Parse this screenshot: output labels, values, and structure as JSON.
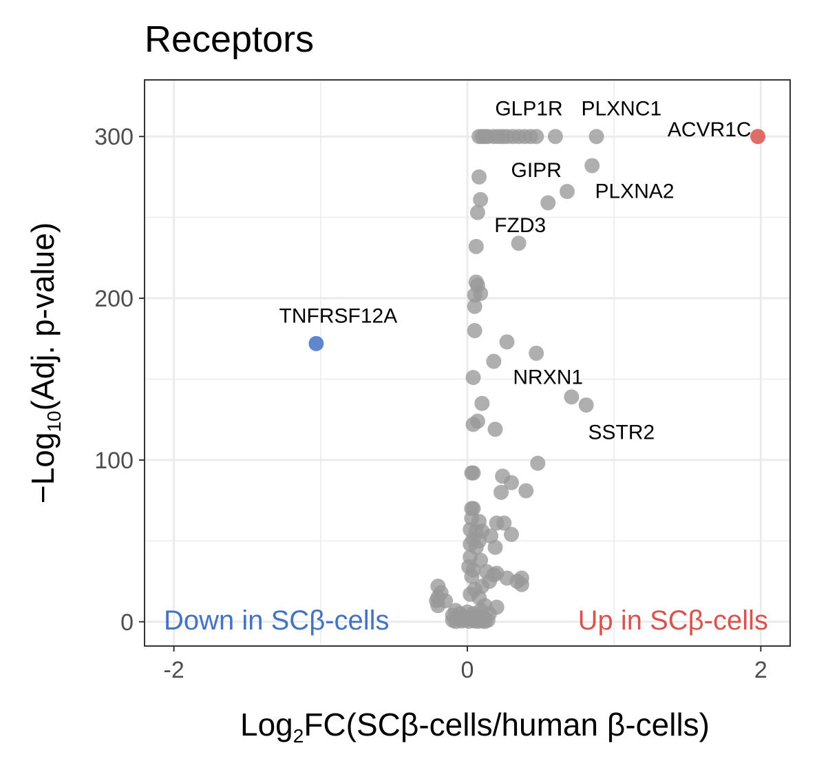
{
  "chart_data": {
    "type": "scatter",
    "title": "Receptors",
    "xlabel": {
      "prefix": "Log",
      "sub": "2",
      "suffix": "FC(SCβ-cells/human β-cells)"
    },
    "ylabel": {
      "prefix": "−Log",
      "sub": "10",
      "suffix": "(Adj. p-value)"
    },
    "xlim": [
      -2.2,
      2.2
    ],
    "ylim": [
      -15,
      335
    ],
    "x_ticks": [
      -2,
      0,
      2
    ],
    "x_tick_labels": [
      "-2",
      "0",
      "2"
    ],
    "y_ticks": [
      0,
      100,
      200,
      300
    ],
    "y_tick_labels": [
      "0",
      "100",
      "200",
      "300"
    ],
    "grid": true,
    "colors": {
      "up": "#d9534f",
      "down": "#4472c4",
      "neutral": "#999999",
      "grid": "#ebebeb",
      "border": "#333333"
    },
    "corner_labels": {
      "down": "Down in SCβ-cells",
      "up": "Up in SCβ-cells"
    },
    "highlighted": [
      {
        "gene": "ACVR1C",
        "x": 1.98,
        "y": 300,
        "class": "up"
      },
      {
        "gene": "TNFRSF12A",
        "x": -1.03,
        "y": 172,
        "class": "down"
      }
    ],
    "gene_labels": [
      {
        "gene": "GLP1R",
        "x": 0.42,
        "y": 313
      },
      {
        "gene": "PLXNC1",
        "x": 1.05,
        "y": 313
      },
      {
        "gene": "ACVR1C",
        "x": 1.65,
        "y": 300
      },
      {
        "gene": "GIPR",
        "x": 0.47,
        "y": 275
      },
      {
        "gene": "PLXNA2",
        "x": 1.14,
        "y": 262
      },
      {
        "gene": "FZD3",
        "x": 0.36,
        "y": 241
      },
      {
        "gene": "TNFRSF12A",
        "x": -0.88,
        "y": 185
      },
      {
        "gene": "NRXN1",
        "x": 0.55,
        "y": 147
      },
      {
        "gene": "SSTR2",
        "x": 1.05,
        "y": 113
      }
    ],
    "points": [
      {
        "x": 0.08,
        "y": 300
      },
      {
        "x": 0.1,
        "y": 300
      },
      {
        "x": 0.12,
        "y": 300
      },
      {
        "x": 0.14,
        "y": 300
      },
      {
        "x": 0.18,
        "y": 300
      },
      {
        "x": 0.21,
        "y": 300
      },
      {
        "x": 0.24,
        "y": 300
      },
      {
        "x": 0.27,
        "y": 300
      },
      {
        "x": 0.31,
        "y": 300
      },
      {
        "x": 0.35,
        "y": 300
      },
      {
        "x": 0.39,
        "y": 300
      },
      {
        "x": 0.43,
        "y": 300
      },
      {
        "x": 0.47,
        "y": 300
      },
      {
        "x": 0.6,
        "y": 300
      },
      {
        "x": 0.88,
        "y": 300
      },
      {
        "x": 0.85,
        "y": 282
      },
      {
        "x": 0.08,
        "y": 275
      },
      {
        "x": 0.68,
        "y": 266
      },
      {
        "x": 0.55,
        "y": 259
      },
      {
        "x": 0.09,
        "y": 261
      },
      {
        "x": 0.07,
        "y": 253
      },
      {
        "x": 0.35,
        "y": 234
      },
      {
        "x": 0.06,
        "y": 232
      },
      {
        "x": 0.06,
        "y": 210
      },
      {
        "x": 0.07,
        "y": 208
      },
      {
        "x": 0.09,
        "y": 203
      },
      {
        "x": 0.05,
        "y": 202
      },
      {
        "x": 0.05,
        "y": 195
      },
      {
        "x": 0.05,
        "y": 180
      },
      {
        "x": 0.27,
        "y": 173
      },
      {
        "x": 0.47,
        "y": 166
      },
      {
        "x": 0.18,
        "y": 161
      },
      {
        "x": 0.04,
        "y": 151
      },
      {
        "x": 0.71,
        "y": 139
      },
      {
        "x": 0.81,
        "y": 134
      },
      {
        "x": 0.1,
        "y": 135
      },
      {
        "x": 0.04,
        "y": 122
      },
      {
        "x": 0.07,
        "y": 124
      },
      {
        "x": 0.19,
        "y": 119
      },
      {
        "x": 0.48,
        "y": 98
      },
      {
        "x": 0.03,
        "y": 92
      },
      {
        "x": 0.04,
        "y": 92
      },
      {
        "x": 0.24,
        "y": 90
      },
      {
        "x": 0.3,
        "y": 86
      },
      {
        "x": 0.4,
        "y": 81
      },
      {
        "x": 0.23,
        "y": 80
      },
      {
        "x": 0.03,
        "y": 70
      },
      {
        "x": 0.04,
        "y": 70
      },
      {
        "x": 0.03,
        "y": 64
      },
      {
        "x": 0.08,
        "y": 62
      },
      {
        "x": 0.2,
        "y": 61
      },
      {
        "x": 0.25,
        "y": 61
      },
      {
        "x": 0.02,
        "y": 57
      },
      {
        "x": 0.06,
        "y": 56
      },
      {
        "x": 0.1,
        "y": 56
      },
      {
        "x": 0.3,
        "y": 54
      },
      {
        "x": 0.16,
        "y": 53
      },
      {
        "x": 0.04,
        "y": 51
      },
      {
        "x": 0.08,
        "y": 50
      },
      {
        "x": 0.02,
        "y": 48
      },
      {
        "x": 0.06,
        "y": 46
      },
      {
        "x": 0.19,
        "y": 46
      },
      {
        "x": 0.02,
        "y": 40
      },
      {
        "x": 0.09,
        "y": 38
      },
      {
        "x": 0.01,
        "y": 34
      },
      {
        "x": 0.04,
        "y": 32
      },
      {
        "x": 0.13,
        "y": 31
      },
      {
        "x": 0.2,
        "y": 30
      },
      {
        "x": 0.18,
        "y": 29
      },
      {
        "x": 0.03,
        "y": 28
      },
      {
        "x": 0.27,
        "y": 27
      },
      {
        "x": 0.37,
        "y": 27
      },
      {
        "x": 0.34,
        "y": 25
      },
      {
        "x": 0.15,
        "y": 25
      },
      {
        "x": 0.37,
        "y": 23
      },
      {
        "x": 0.1,
        "y": 22
      },
      {
        "x": -0.2,
        "y": 22
      },
      {
        "x": 0.05,
        "y": 20
      },
      {
        "x": -0.18,
        "y": 18
      },
      {
        "x": 0.02,
        "y": 17
      },
      {
        "x": -0.2,
        "y": 15
      },
      {
        "x": 0.08,
        "y": 15
      },
      {
        "x": -0.21,
        "y": 13
      },
      {
        "x": -0.15,
        "y": 13
      },
      {
        "x": -0.2,
        "y": 10
      },
      {
        "x": 0.12,
        "y": 10
      },
      {
        "x": 0.2,
        "y": 9
      },
      {
        "x": -0.08,
        "y": 7
      },
      {
        "x": 0.09,
        "y": 7
      },
      {
        "x": 0.0,
        "y": 6
      },
      {
        "x": -0.05,
        "y": 5
      },
      {
        "x": 0.04,
        "y": 5
      },
      {
        "x": 0.15,
        "y": 5
      },
      {
        "x": -0.1,
        "y": 4
      },
      {
        "x": -0.03,
        "y": 3
      },
      {
        "x": 0.06,
        "y": 3
      },
      {
        "x": 0.11,
        "y": 3
      },
      {
        "x": -0.07,
        "y": 2
      },
      {
        "x": 0.02,
        "y": 2
      },
      {
        "x": 0.08,
        "y": 2
      },
      {
        "x": -0.1,
        "y": 1
      },
      {
        "x": 0.14,
        "y": 1
      },
      {
        "x": -0.02,
        "y": 1
      },
      {
        "x": 0.05,
        "y": 0.5
      },
      {
        "x": -0.04,
        "y": 0.5
      },
      {
        "x": 0.1,
        "y": 0.5
      },
      {
        "x": 0.01,
        "y": 0.3
      },
      {
        "x": 0.07,
        "y": 0.3
      },
      {
        "x": -0.08,
        "y": 0.2
      },
      {
        "x": 0.12,
        "y": 0.2
      }
    ]
  }
}
